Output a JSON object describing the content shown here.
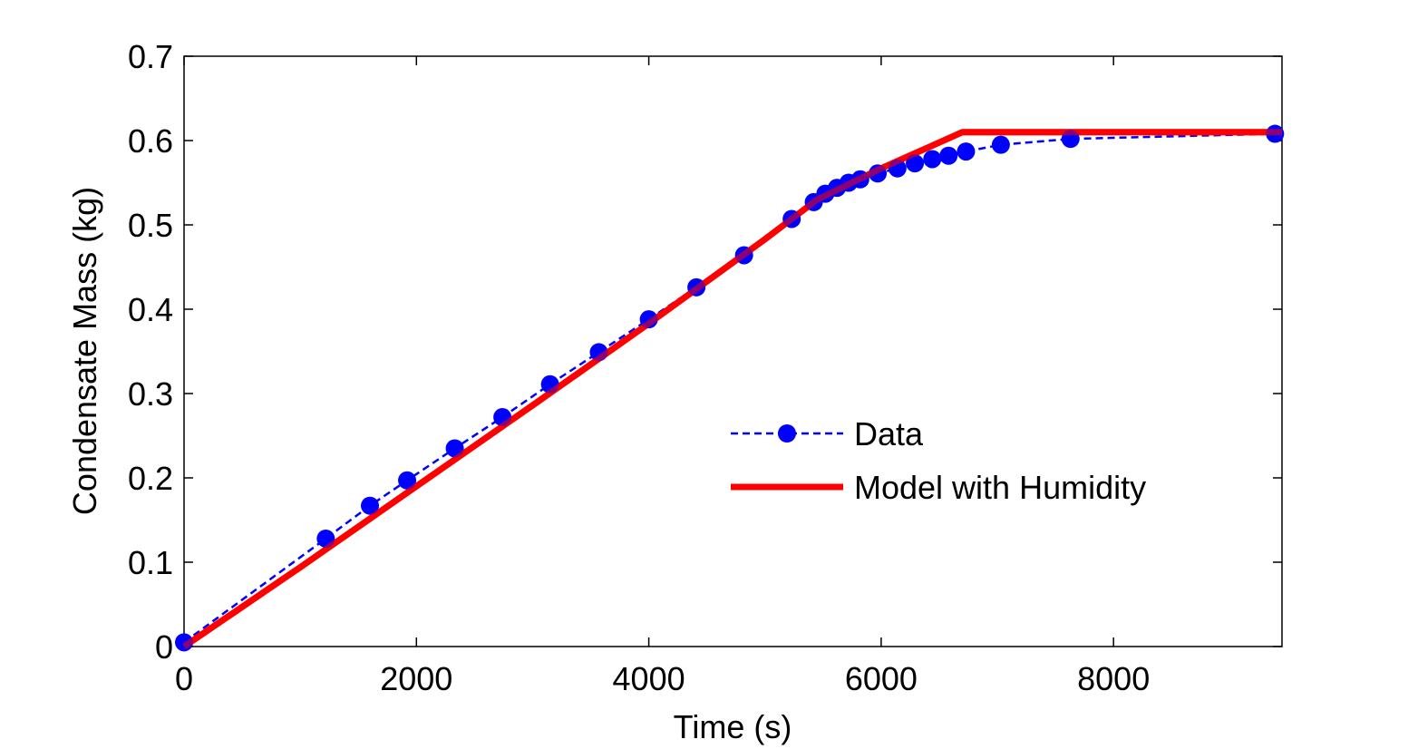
{
  "chart_data": {
    "type": "line",
    "title": "",
    "xlabel": "Time (s)",
    "ylabel": "Condensate Mass (kg)",
    "xlim": [
      0,
      9450
    ],
    "ylim": [
      0,
      0.7
    ],
    "xticks": [
      0,
      2000,
      4000,
      6000,
      8000
    ],
    "yticks": [
      0,
      0.1,
      0.2,
      0.3,
      0.4,
      0.5,
      0.6,
      0.7
    ],
    "xtick_labels": [
      "0",
      "2000",
      "4000",
      "6000",
      "8000"
    ],
    "ytick_labels": [
      "0",
      "0.1",
      "0.2",
      "0.3",
      "0.4",
      "0.5",
      "0.6",
      "0.7"
    ],
    "grid": false,
    "legend_position": "center-right",
    "series": [
      {
        "name": "Data",
        "style": "dashed-markers",
        "color": "#0000ff",
        "points": [
          [
            0,
            0.005
          ],
          [
            1220,
            0.128
          ],
          [
            1600,
            0.167
          ],
          [
            1920,
            0.197
          ],
          [
            2330,
            0.235
          ],
          [
            2740,
            0.272
          ],
          [
            3150,
            0.311
          ],
          [
            3570,
            0.349
          ],
          [
            4000,
            0.388
          ],
          [
            4410,
            0.426
          ],
          [
            4820,
            0.464
          ],
          [
            5230,
            0.507
          ],
          [
            5420,
            0.527
          ],
          [
            5520,
            0.537
          ],
          [
            5620,
            0.544
          ],
          [
            5720,
            0.55
          ],
          [
            5820,
            0.554
          ],
          [
            5970,
            0.561
          ],
          [
            6140,
            0.567
          ],
          [
            6290,
            0.573
          ],
          [
            6440,
            0.578
          ],
          [
            6580,
            0.582
          ],
          [
            6730,
            0.587
          ],
          [
            7030,
            0.595
          ],
          [
            7630,
            0.602
          ],
          [
            9390,
            0.608
          ]
        ]
      },
      {
        "name": "Model with Humidity",
        "style": "solid",
        "color": "#ff0000",
        "points": [
          [
            0,
            0.0
          ],
          [
            1000,
            0.094
          ],
          [
            2000,
            0.19
          ],
          [
            3000,
            0.286
          ],
          [
            4000,
            0.383
          ],
          [
            5000,
            0.483
          ],
          [
            5450,
            0.53
          ],
          [
            6000,
            0.567
          ],
          [
            6700,
            0.61
          ],
          [
            9450,
            0.61
          ]
        ]
      }
    ]
  }
}
